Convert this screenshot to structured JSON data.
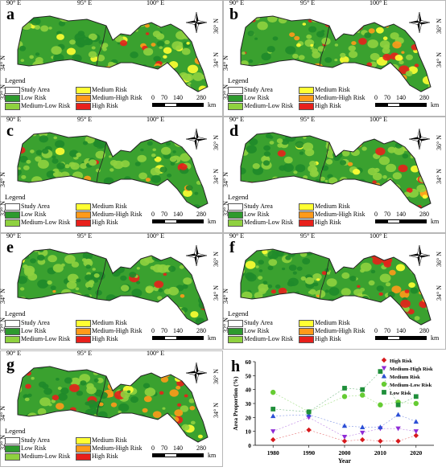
{
  "maps": [
    {
      "letter": "a",
      "severity": 0.45
    },
    {
      "letter": "b",
      "severity": 0.8
    },
    {
      "letter": "c",
      "severity": 0.2
    },
    {
      "letter": "d",
      "severity": 0.55
    },
    {
      "letter": "e",
      "severity": 0.25
    },
    {
      "letter": "f",
      "severity": 0.45
    },
    {
      "letter": "g",
      "severity": 0.65
    }
  ],
  "axis_labels": {
    "lon1": "90° E",
    "lon2": "95° E",
    "lon3": "100° E",
    "lat1": "32° N",
    "lat2": "34° N",
    "lat3": "36° N"
  },
  "legend": {
    "title": "Legend",
    "items": [
      {
        "label": "Study Area",
        "color": "#ffffff"
      },
      {
        "label": "Medium Risk",
        "color": "#ffff33"
      },
      {
        "label": "Low Risk",
        "color": "#2e9a2e"
      },
      {
        "label": "Medium-High Risk",
        "color": "#ff9a1a"
      },
      {
        "label": "Medium-Low Risk",
        "color": "#8fd13f"
      },
      {
        "label": "High Risk",
        "color": "#e8201b"
      }
    ]
  },
  "scale": {
    "ticks": [
      "0",
      "70",
      "140",
      "280"
    ],
    "unit": "km"
  },
  "compass_icon": "north-arrow-icon",
  "chart_letter": "h",
  "chart_data": {
    "type": "scatter",
    "x": [
      1980,
      1990,
      2000,
      2005,
      2010,
      2015,
      2020
    ],
    "x_ticks": [
      "1980",
      "1990",
      "2000",
      "2010",
      "2020"
    ],
    "xlim": [
      1975,
      2025
    ],
    "ylim": [
      0,
      60
    ],
    "y_ticks": [
      "0",
      "10",
      "20",
      "30",
      "40",
      "50",
      "60"
    ],
    "xlabel": "Year",
    "ylabel": "Area Proportion (%)",
    "grid": false,
    "legend_position": "top-right",
    "series": [
      {
        "name": "High Risk",
        "color": "#d7191c",
        "marker": "diamond",
        "values": [
          4,
          11,
          3,
          4,
          3,
          3,
          7
        ]
      },
      {
        "name": "Medium-High Risk",
        "color": "#8e2bd6",
        "marker": "triangle-down",
        "values": [
          10,
          20,
          6,
          9,
          12,
          12,
          10
        ]
      },
      {
        "name": "Medium Risk",
        "color": "#2c4fd6",
        "marker": "triangle-up",
        "values": [
          21,
          22,
          14,
          13,
          13,
          22,
          17
        ]
      },
      {
        "name": "Medium-Low Risk",
        "color": "#66cc33",
        "marker": "circle",
        "values": [
          38,
          24,
          35,
          36,
          29,
          31,
          30
        ]
      },
      {
        "name": "Low Risk",
        "color": "#1f8f3a",
        "marker": "square",
        "values": [
          26,
          24,
          41,
          40,
          53,
          29,
          35
        ]
      }
    ]
  }
}
